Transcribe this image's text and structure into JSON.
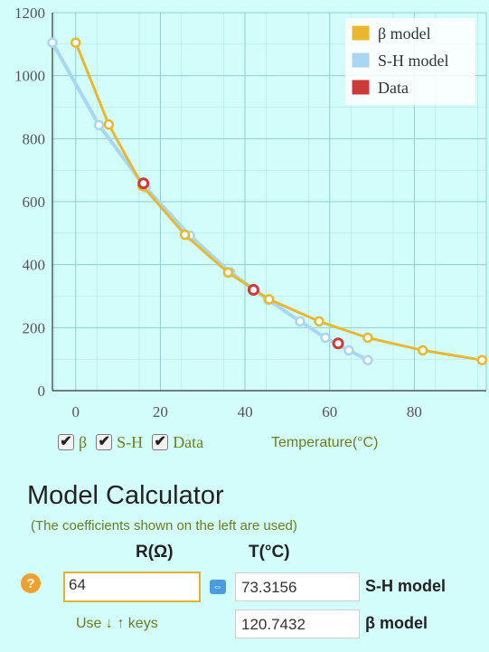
{
  "chart_data": {
    "type": "line",
    "xlabel": "Temperature(°C)",
    "ylabel": "",
    "xlim": [
      -5.5,
      97
    ],
    "ylim": [
      0,
      1200
    ],
    "xticks": [
      0,
      20,
      40,
      60,
      80
    ],
    "yticks": [
      0,
      200,
      400,
      600,
      800,
      1000,
      1200
    ],
    "grid": true,
    "legend": "top-right",
    "series": [
      {
        "name": "β model",
        "color": "#e8b830",
        "x": [
          0,
          7.8,
          15.8,
          25.8,
          36,
          45.7,
          57.5,
          69,
          82,
          96
        ],
        "y": [
          1105,
          845,
          650,
          495,
          375,
          290,
          220,
          168,
          128,
          97
        ]
      },
      {
        "name": "S-H model",
        "color": "#a9d6f0",
        "x": [
          -5.5,
          5.5,
          16.5,
          27,
          36.5,
          45.5,
          53,
          59,
          64.5,
          69
        ],
        "y": [
          1105,
          843,
          645,
          492,
          376,
          288,
          220,
          168,
          128,
          97
        ]
      },
      {
        "name": "Data",
        "color": "#cc3a3a",
        "x": [
          16,
          42,
          62
        ],
        "y": [
          658,
          320,
          150
        ]
      }
    ]
  },
  "checkboxes": [
    {
      "label": "β",
      "checked": true
    },
    {
      "label": "S-H",
      "checked": true
    },
    {
      "label": "Data",
      "checked": true
    }
  ],
  "calculator": {
    "title": "Model Calculator",
    "subtitle": "(The coefficients shown on the left are used)",
    "r_header": "R(Ω)",
    "t_header": "T(°C)",
    "r_value": "64",
    "sh_value": "73.3156",
    "sh_label": "S-H model",
    "beta_value": "120.7432",
    "beta_label": "β model",
    "keys_hint": "Use ↓ ↑ keys",
    "help_glyph": "?",
    "swap_glyph": "⇔"
  },
  "colors": {
    "background": "#d3fdfb",
    "grid": "#8ecfcf",
    "axis_text": "#555555",
    "accent_label": "#6b7d1e"
  }
}
